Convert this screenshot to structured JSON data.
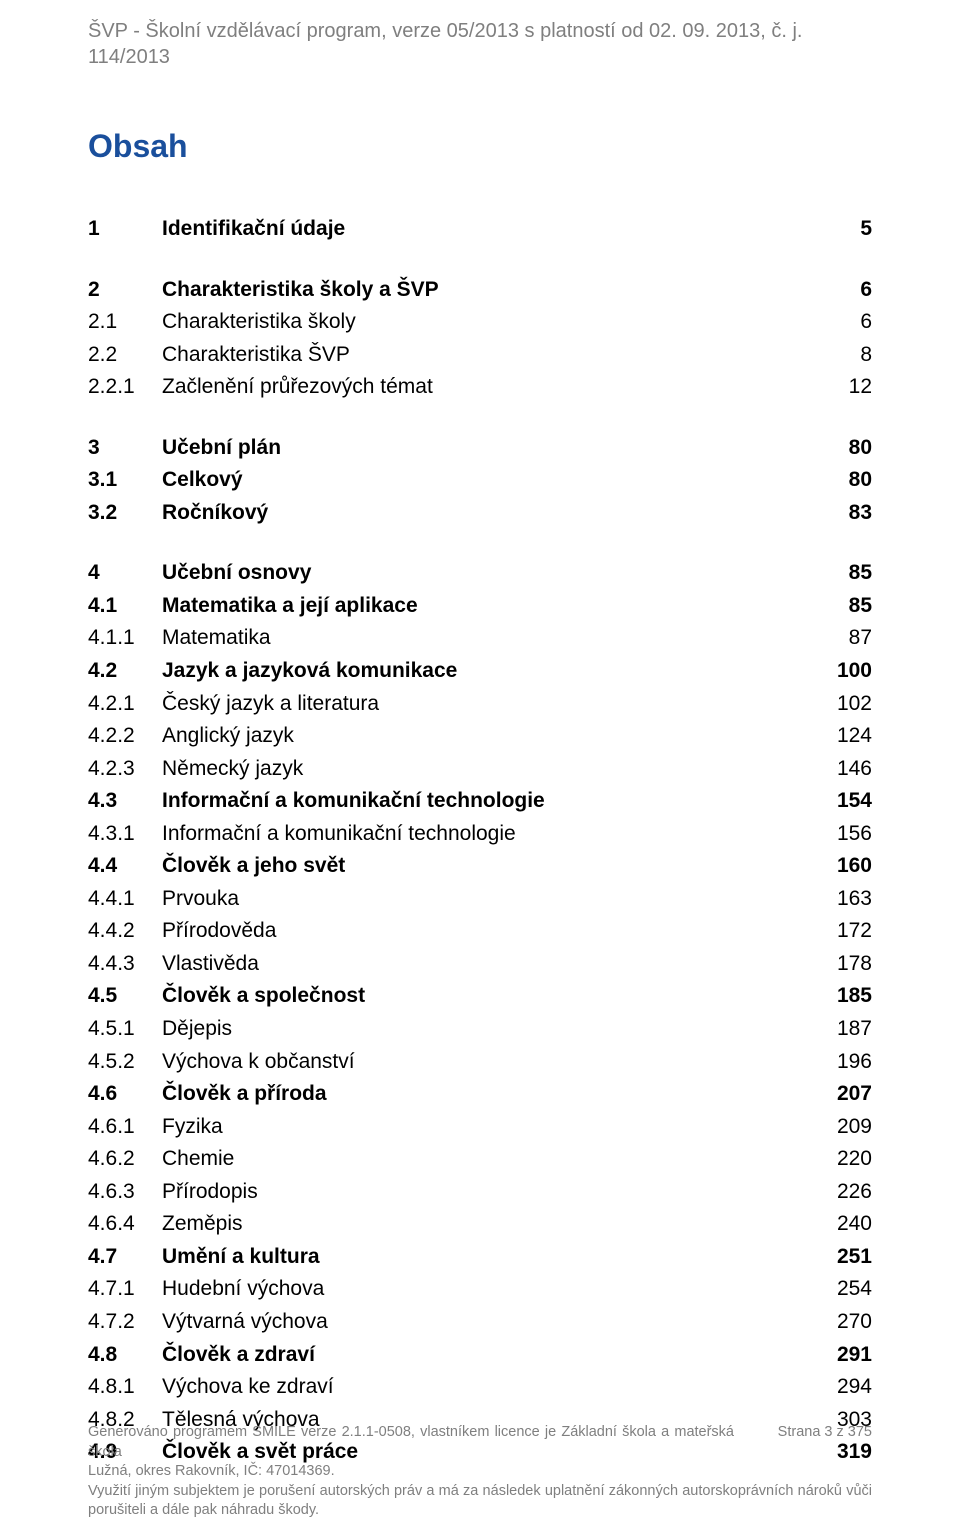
{
  "header": "ŠVP - Školní vzdělávací program, verze 05/2013 s platností od 02. 09. 2013, č. j. 114/2013",
  "title": "Obsah",
  "blocks": [
    [
      {
        "n": "1",
        "t": "Identifikační údaje",
        "p": "5",
        "b": true
      }
    ],
    [
      {
        "n": "2",
        "t": "Charakteristika školy a ŠVP",
        "p": "6",
        "b": true
      },
      {
        "n": "2.1",
        "t": "Charakteristika školy",
        "p": "6",
        "b": false
      },
      {
        "n": "2.2",
        "t": "Charakteristika ŠVP",
        "p": "8",
        "b": false
      },
      {
        "n": "2.2.1",
        "t": "Začlenění průřezových témat",
        "p": "12",
        "b": false
      }
    ],
    [
      {
        "n": "3",
        "t": "Učební plán",
        "p": "80",
        "b": true
      },
      {
        "n": "3.1",
        "t": "Celkový",
        "p": "80",
        "b": true
      },
      {
        "n": "3.2",
        "t": "Ročníkový",
        "p": "83",
        "b": true
      }
    ],
    [
      {
        "n": "4",
        "t": "Učební osnovy",
        "p": "85",
        "b": true
      },
      {
        "n": "4.1",
        "t": "Matematika a její aplikace",
        "p": "85",
        "b": true
      },
      {
        "n": "4.1.1",
        "t": "Matematika",
        "p": "87",
        "b": false
      },
      {
        "n": "4.2",
        "t": "Jazyk a jazyková komunikace",
        "p": "100",
        "b": true
      },
      {
        "n": "4.2.1",
        "t": "Český jazyk a literatura",
        "p": "102",
        "b": false
      },
      {
        "n": "4.2.2",
        "t": "Anglický jazyk",
        "p": "124",
        "b": false
      },
      {
        "n": "4.2.3",
        "t": "Německý jazyk",
        "p": "146",
        "b": false
      },
      {
        "n": "4.3",
        "t": "Informační a komunikační technologie",
        "p": "154",
        "b": true
      },
      {
        "n": "4.3.1",
        "t": "Informační a komunikační technologie",
        "p": "156",
        "b": false
      },
      {
        "n": "4.4",
        "t": "Člověk a jeho svět",
        "p": "160",
        "b": true
      },
      {
        "n": "4.4.1",
        "t": "Prvouka",
        "p": "163",
        "b": false
      },
      {
        "n": "4.4.2",
        "t": "Přírodověda",
        "p": "172",
        "b": false
      },
      {
        "n": "4.4.3",
        "t": "Vlastivěda",
        "p": "178",
        "b": false
      },
      {
        "n": "4.5",
        "t": "Člověk a společnost",
        "p": "185",
        "b": true
      },
      {
        "n": "4.5.1",
        "t": "Dějepis",
        "p": "187",
        "b": false
      },
      {
        "n": "4.5.2",
        "t": "Výchova k občanství",
        "p": "196",
        "b": false
      },
      {
        "n": "4.6",
        "t": "Člověk a příroda",
        "p": "207",
        "b": true
      },
      {
        "n": "4.6.1",
        "t": "Fyzika",
        "p": "209",
        "b": false
      },
      {
        "n": "4.6.2",
        "t": "Chemie",
        "p": "220",
        "b": false
      },
      {
        "n": "4.6.3",
        "t": "Přírodopis",
        "p": "226",
        "b": false
      },
      {
        "n": "4.6.4",
        "t": "Zeměpis",
        "p": "240",
        "b": false
      },
      {
        "n": "4.7",
        "t": "Umění a kultura",
        "p": "251",
        "b": true
      },
      {
        "n": "4.7.1",
        "t": "Hudební výchova",
        "p": "254",
        "b": false
      },
      {
        "n": "4.7.2",
        "t": "Výtvarná výchova",
        "p": "270",
        "b": false
      },
      {
        "n": "4.8",
        "t": "Člověk a zdraví",
        "p": "291",
        "b": true
      },
      {
        "n": "4.8.1",
        "t": "Výchova ke zdraví",
        "p": "294",
        "b": false
      },
      {
        "n": "4.8.2",
        "t": "Tělesná výchova",
        "p": "303",
        "b": false
      },
      {
        "n": "4.9",
        "t": "Člověk a svět práce",
        "p": "319",
        "b": true
      }
    ]
  ],
  "footer": {
    "line1": "Generováno programem SMILE verze 2.1.1-0508, vlastníkem licence je Základní škola a mateřská škola",
    "page": "Strana 3 z 375",
    "line2": "Lužná, okres Rakovník, IČ: 47014369.",
    "line3": "Využití jiným subjektem je porušení autorských práv a má za následek uplatnění zákonných autorskoprávních nároků vůči porušiteli a dále pak náhradu škody."
  }
}
